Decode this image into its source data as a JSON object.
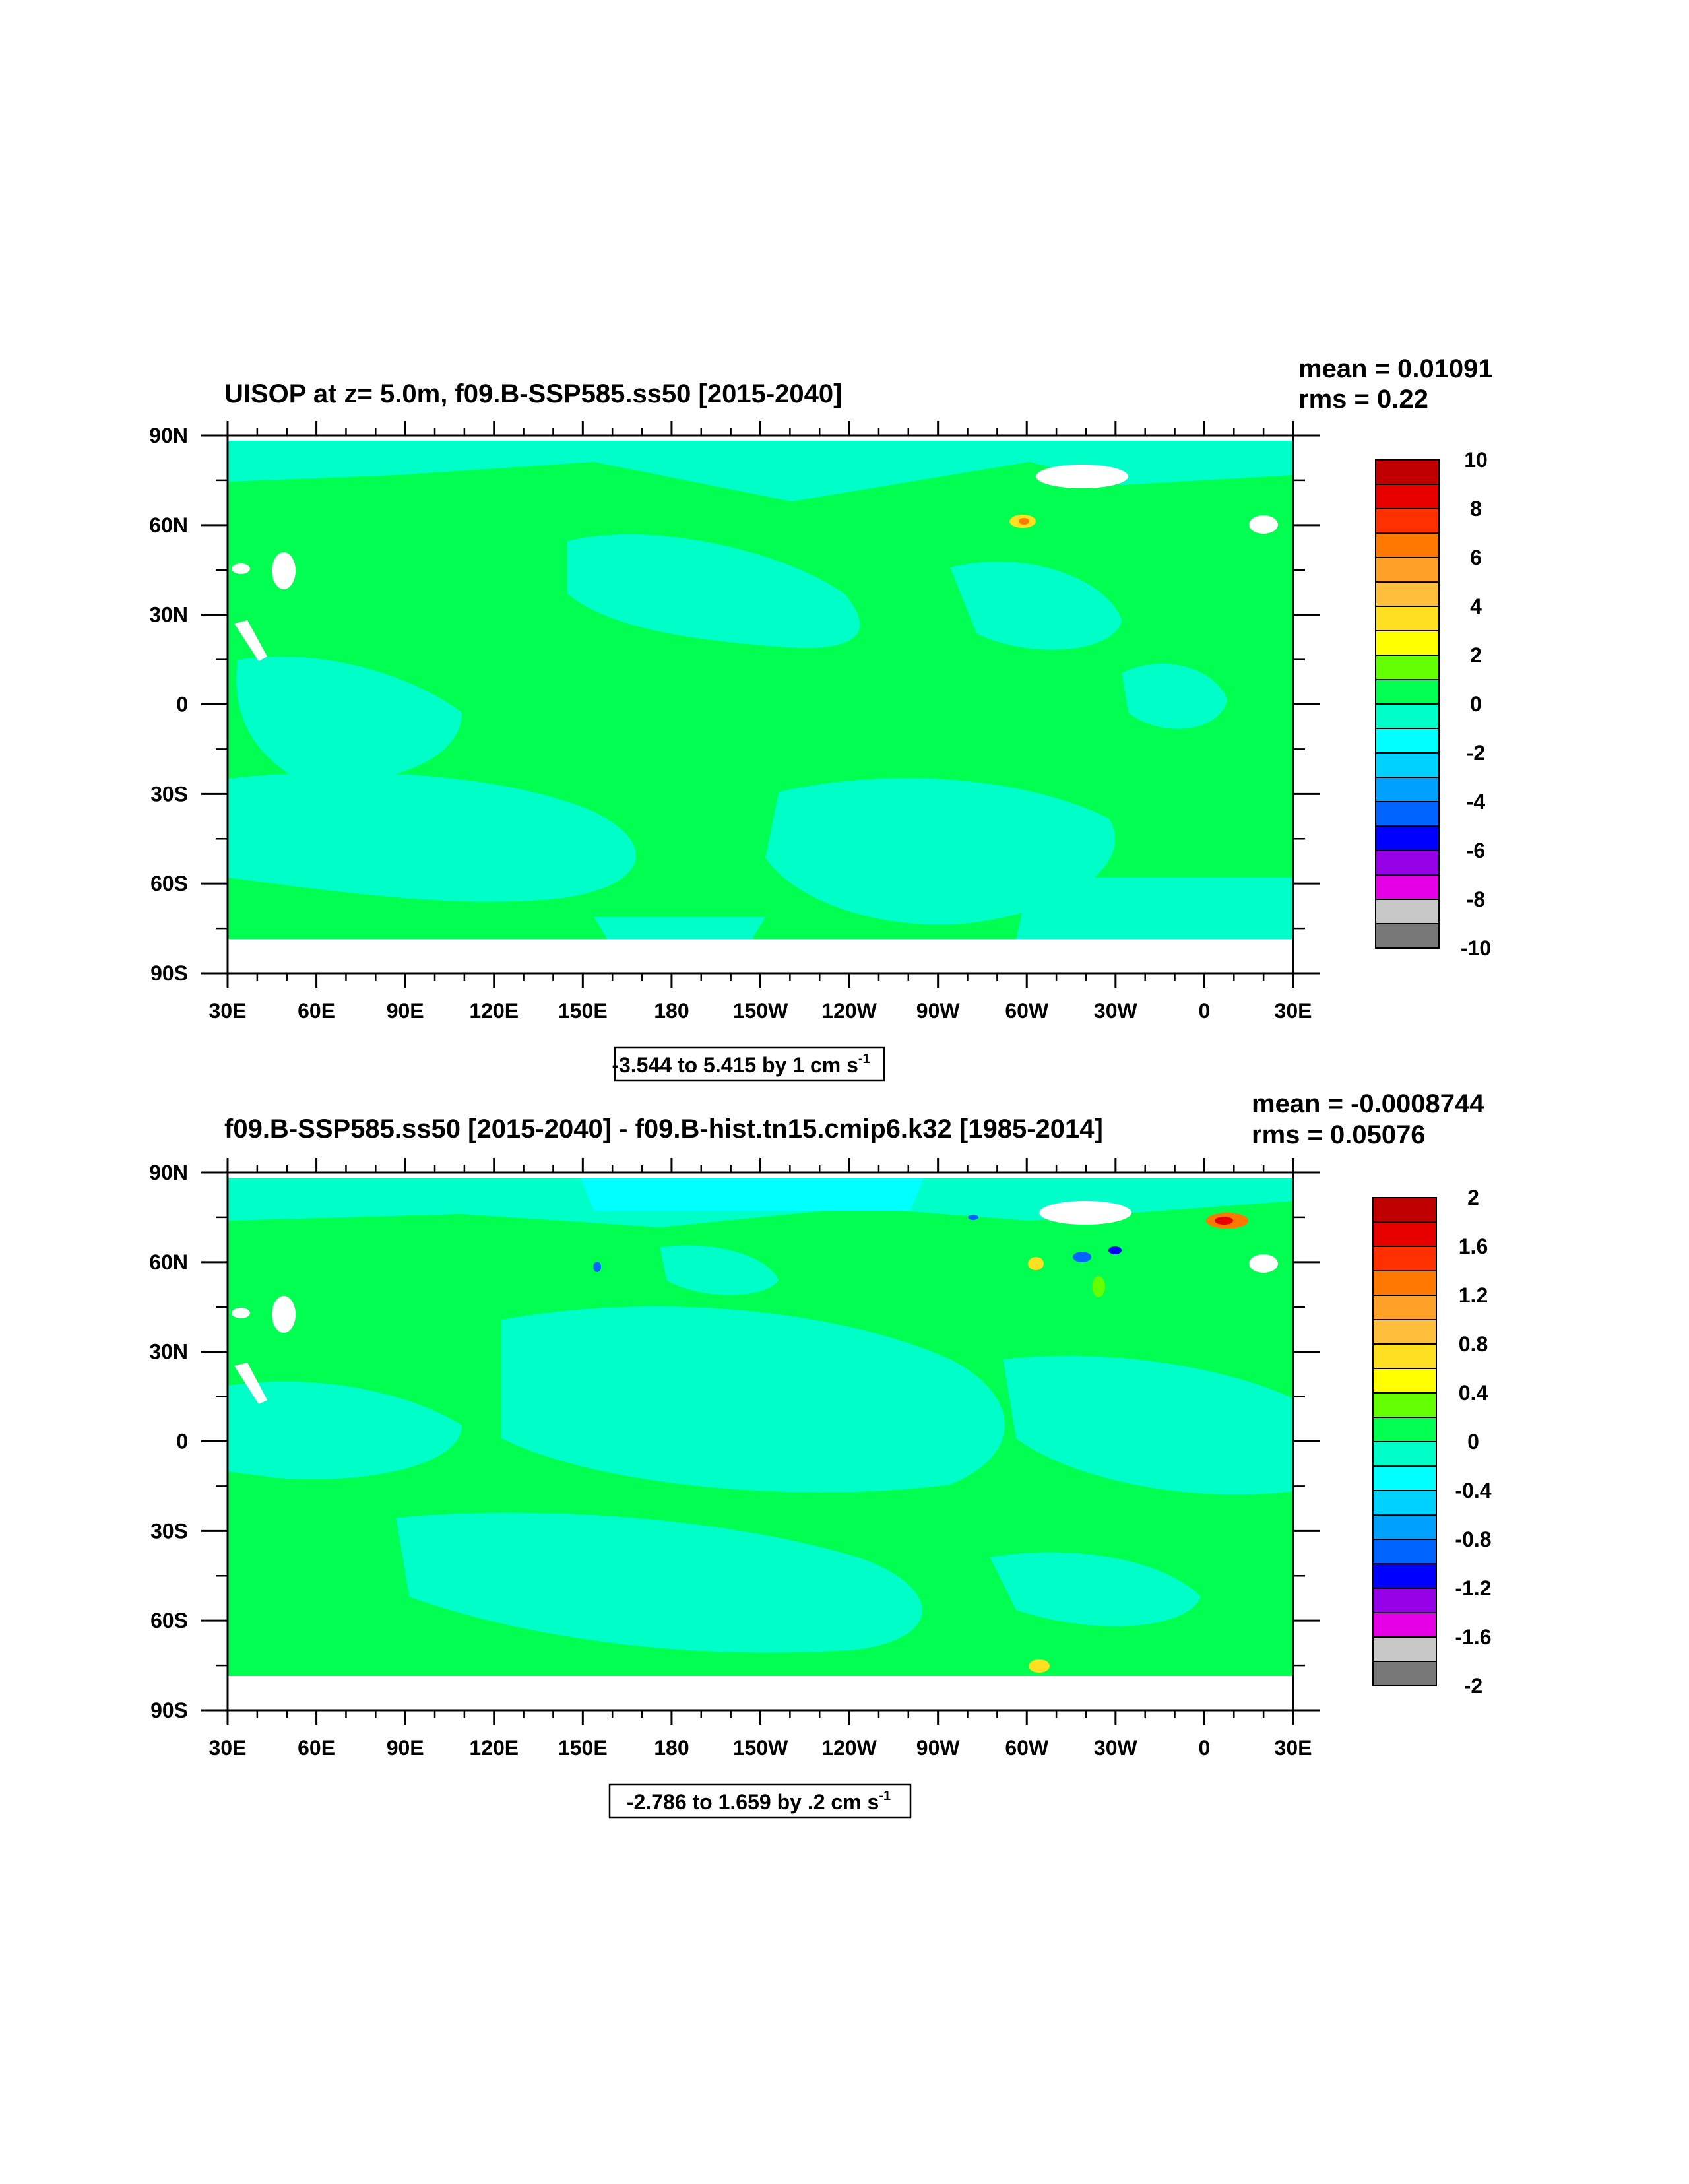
{
  "chart_data": [
    {
      "type": "heatmap",
      "title": "UISOP at z=   5.0m, f09.B-SSP585.ss50 [2015-2040]",
      "stats": {
        "mean": "mean = 0.01091",
        "rms": "rms = 0.22"
      },
      "x_ticks": [
        "30E",
        "60E",
        "90E",
        "120E",
        "150E",
        "180",
        "150W",
        "120W",
        "90W",
        "60W",
        "30W",
        "0",
        "30E"
      ],
      "y_ticks": [
        "90N",
        "60N",
        "30N",
        "0",
        "30S",
        "60S",
        "90S"
      ],
      "xlim": [
        30,
        390
      ],
      "ylim": [
        -90,
        90
      ],
      "range_label": {
        "text": "-3.544 to 5.415 by 1 cm s",
        "sup": "-1"
      },
      "colorbar": {
        "labels": [
          "10",
          "8",
          "6",
          "4",
          "2",
          "0",
          "-2",
          "-4",
          "-6",
          "-8",
          "-10"
        ],
        "colors": [
          "#c00000",
          "#e80000",
          "#ff3000",
          "#ff7800",
          "#ffa028",
          "#ffbe3c",
          "#ffe020",
          "#ffff00",
          "#64ff00",
          "#00ff50",
          "#00ffc8",
          "#00ffff",
          "#00d2ff",
          "#00a0ff",
          "#0064ff",
          "#0000ff",
          "#9600e6",
          "#e600e6",
          "#c8c8c8",
          "#787878"
        ]
      },
      "field": {
        "dominant_positive": "#00ff50",
        "dominant_negative": "#00ffc8"
      }
    },
    {
      "type": "heatmap",
      "title": "f09.B-SSP585.ss50 [2015-2040] - f09.B-hist.tn15.cmip6.k32 [1985-2014]",
      "stats": {
        "mean": "mean = -0.0008744",
        "rms": "rms = 0.05076"
      },
      "x_ticks": [
        "30E",
        "60E",
        "90E",
        "120E",
        "150E",
        "180",
        "150W",
        "120W",
        "90W",
        "60W",
        "30W",
        "0",
        "30E"
      ],
      "y_ticks": [
        "90N",
        "60N",
        "30N",
        "0",
        "30S",
        "60S",
        "90S"
      ],
      "xlim": [
        30,
        390
      ],
      "ylim": [
        -90,
        90
      ],
      "range_label": {
        "text": "-2.786 to 1.659 by .2 cm s",
        "sup": "-1"
      },
      "colorbar": {
        "labels": [
          "2",
          "1.6",
          "1.2",
          "0.8",
          "0.4",
          "0",
          "-0.4",
          "-0.8",
          "-1.2",
          "-1.6",
          "-2"
        ],
        "colors": [
          "#c00000",
          "#e80000",
          "#ff3000",
          "#ff7800",
          "#ffa028",
          "#ffbe3c",
          "#ffe020",
          "#ffff00",
          "#64ff00",
          "#00ff50",
          "#00ffc8",
          "#00ffff",
          "#00d2ff",
          "#00a0ff",
          "#0064ff",
          "#0000ff",
          "#9600e6",
          "#e600e6",
          "#c8c8c8",
          "#787878"
        ]
      },
      "field": {
        "dominant_positive": "#00ff50",
        "dominant_negative": "#00ffc8"
      }
    }
  ]
}
